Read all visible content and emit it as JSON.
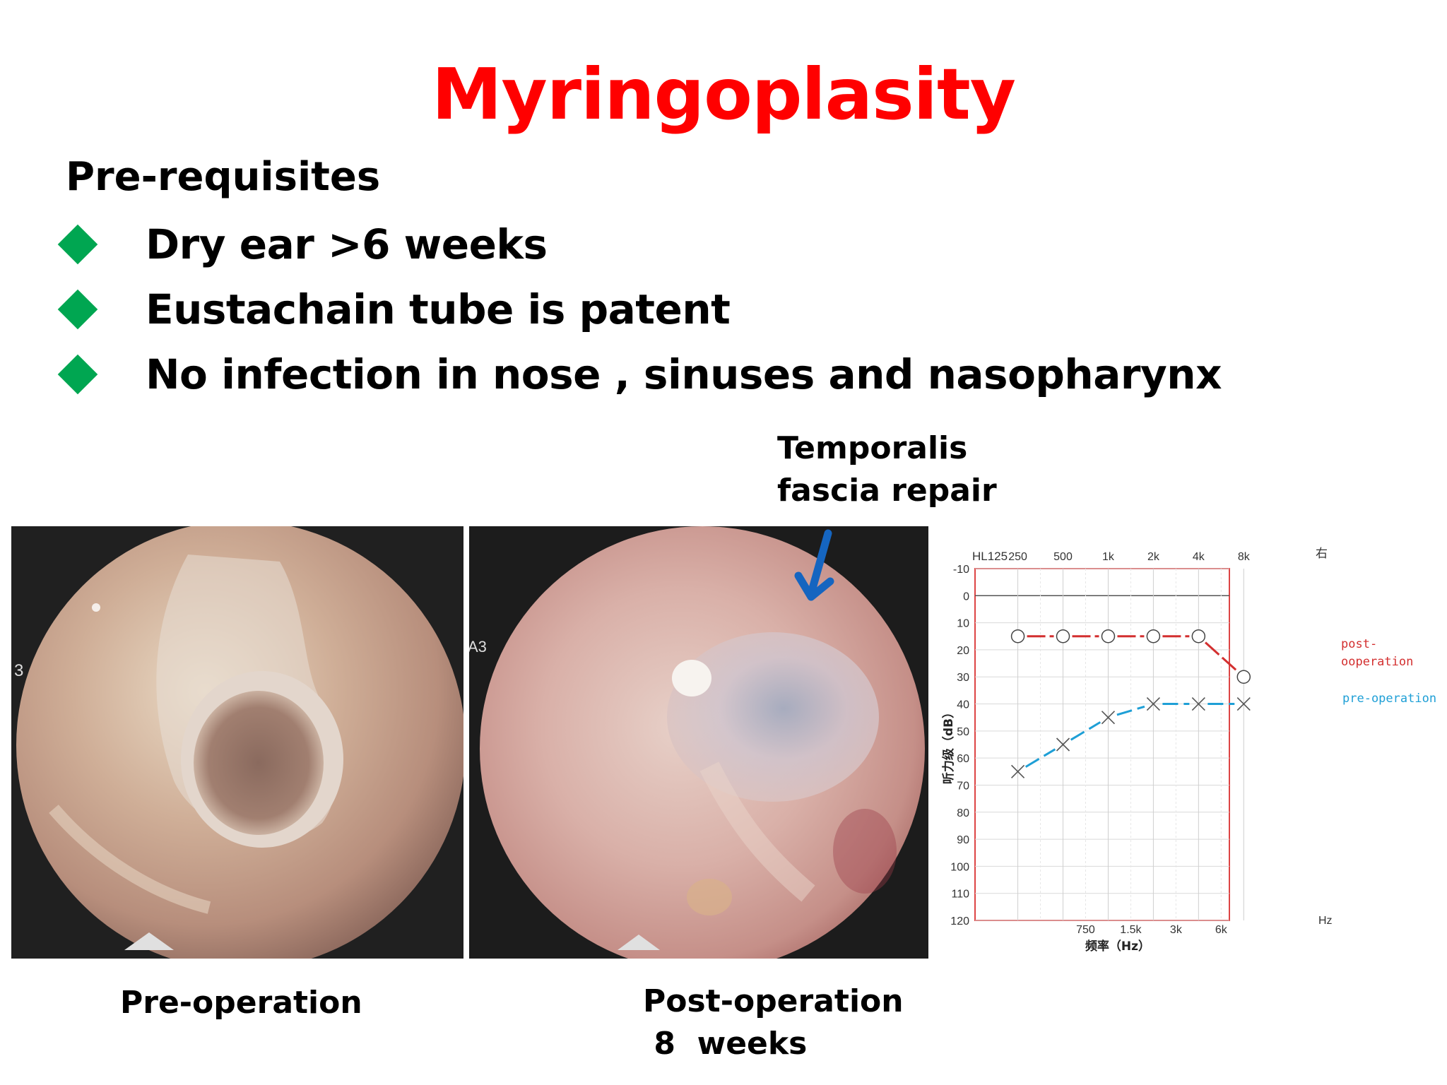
{
  "title": "Myringoplasity",
  "prerequisites": {
    "heading": "Pre-requisites",
    "items": [
      "Dry ear >6 weeks",
      "Eustachain tube is patent",
      "No infection in nose , sinuses and nasopharynx"
    ]
  },
  "annotation": {
    "line1": "Temporalis",
    "line2": "fascia repair"
  },
  "captions": {
    "pre": "Pre-operation",
    "post_line1": "Post-operation",
    "post_line2": " 8  weeks"
  },
  "photo_markers": {
    "left": "3",
    "right_a": "A3"
  },
  "colors": {
    "title": "#ff0000",
    "bullet": "#00a651",
    "arrow": "#1565c0",
    "post_series": "#d32f2f",
    "pre_series": "#1e9fd6"
  },
  "chart_data": {
    "type": "line",
    "corner_label": "HL125",
    "right_mark": "右",
    "top_ticks": [
      "250",
      "500",
      "1k",
      "2k",
      "4k",
      "8k"
    ],
    "bottom_ticks": [
      "750",
      "1.5k",
      "3k",
      "6k"
    ],
    "bottom_unit": "Hz",
    "xlabel": "频率（Hz）",
    "ylabel": "听力级（dB）",
    "y_ticks": [
      "-10",
      "0",
      "10",
      "20",
      "30",
      "40",
      "50",
      "60",
      "70",
      "80",
      "90",
      "100",
      "110",
      "120"
    ],
    "ylim": [
      -10,
      120
    ],
    "series": [
      {
        "name": "post-\nooperation",
        "marker": "circle",
        "x": [
          "250",
          "500",
          "1k",
          "2k",
          "4k",
          "8k"
        ],
        "values": [
          15,
          15,
          15,
          15,
          15,
          30
        ]
      },
      {
        "name": "pre-operation",
        "marker": "cross",
        "x": [
          "250",
          "500",
          "1k",
          "2k",
          "4k",
          "8k"
        ],
        "values": [
          65,
          55,
          45,
          40,
          40,
          40
        ]
      }
    ]
  }
}
